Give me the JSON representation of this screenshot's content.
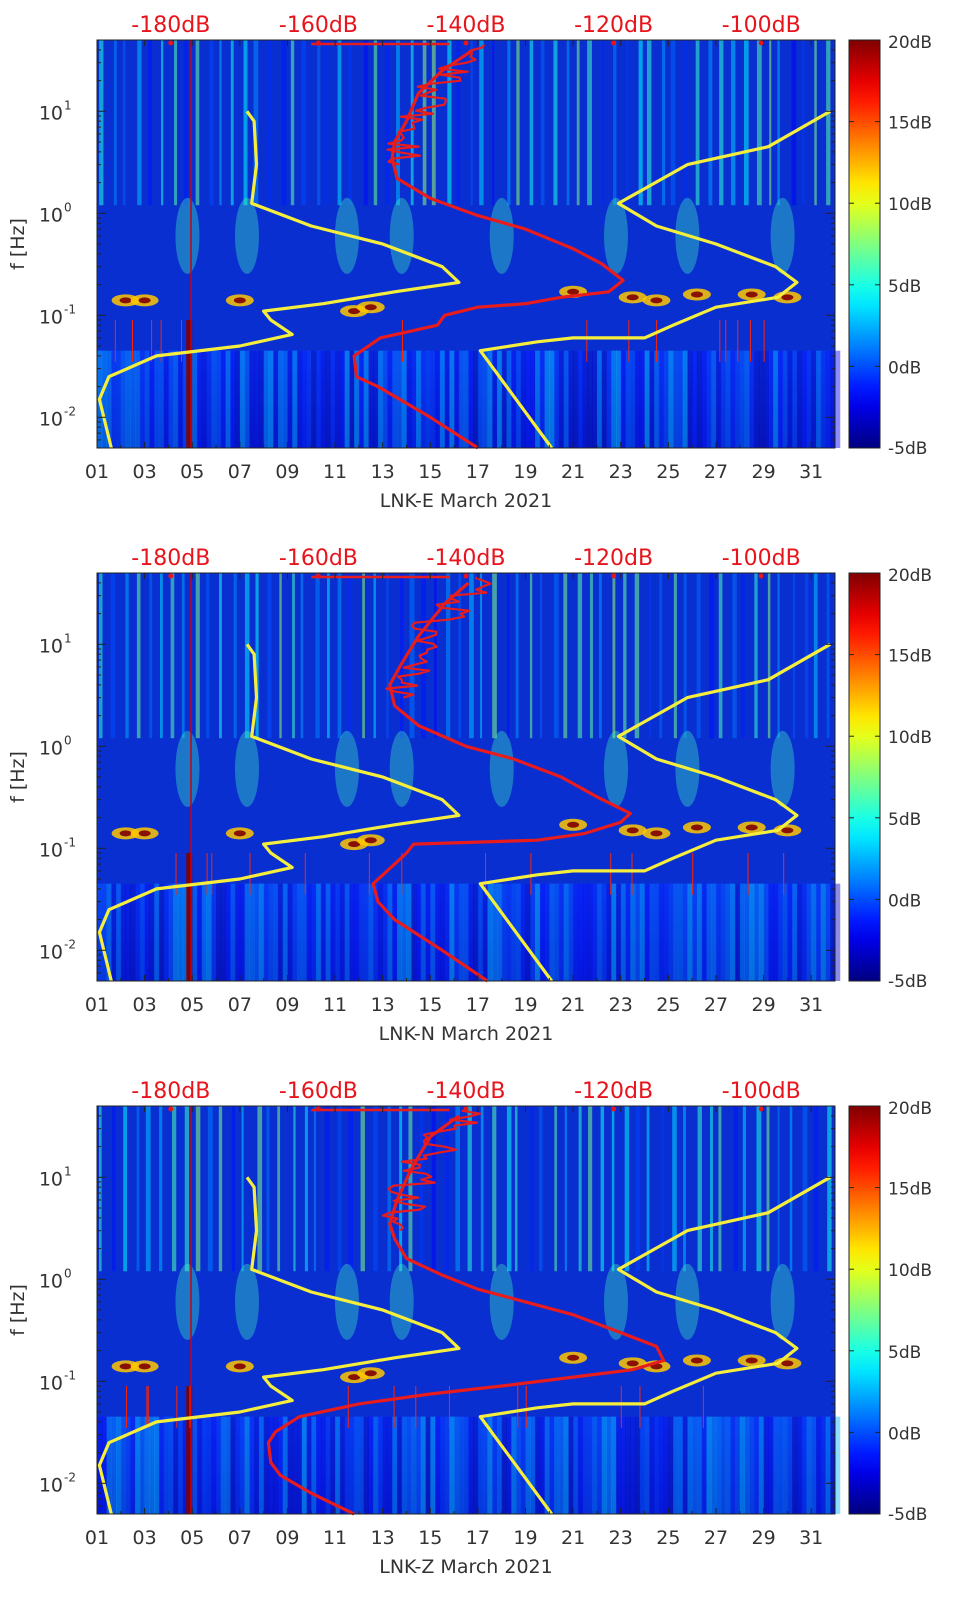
{
  "figure": {
    "top_scale": {
      "labels": [
        "-180dB",
        "-160dB",
        "-140dB",
        "-120dB",
        "-100dB"
      ],
      "values": [
        -180,
        -160,
        -140,
        -120,
        -100
      ],
      "color": "#e8141c"
    },
    "colorbar": {
      "labels": [
        "20dB",
        "15dB",
        "10dB",
        "5dB",
        "0dB",
        "-5dB"
      ],
      "values": [
        20,
        15,
        10,
        5,
        0,
        -5
      ],
      "colormap": "jet"
    },
    "ylabel": "f [Hz]",
    "ytick_labels": [
      "10",
      "10",
      "10"
    ],
    "ytick_exponents": [
      "1",
      "0",
      "-1"
    ],
    "ytick_extra": {
      "base": "10",
      "exponent": "-2"
    },
    "xtick_labels": [
      "01",
      "03",
      "05",
      "07",
      "09",
      "11",
      "13",
      "15",
      "17",
      "19",
      "21",
      "23",
      "25",
      "27",
      "29",
      "31"
    ]
  },
  "panels": [
    {
      "xlabel": "LNK-E March 2021"
    },
    {
      "xlabel": "LNK-N March 2021"
    },
    {
      "xlabel": "LNK-Z March 2021"
    }
  ],
  "colors": {
    "model_curves": "#f5ee3c",
    "noise_curve": "#e81c1c",
    "background": "#0a2fd0"
  },
  "chart_data": [
    {
      "type": "heatmap",
      "title": "",
      "xlabel": "LNK-E March 2021",
      "ylabel": "f [Hz]",
      "xlim": [
        1,
        32
      ],
      "ylim": [
        0.005,
        50
      ],
      "yscale": "log",
      "color_range_db": [
        -5,
        20
      ],
      "top_axis_range_db": [
        -190,
        -90
      ],
      "model_curves_day": {
        "low_model": [
          [
            1.6,
            0.005
          ],
          [
            1.1,
            0.015
          ],
          [
            1.5,
            0.025
          ],
          [
            3.5,
            0.04
          ],
          [
            7.0,
            0.05
          ],
          [
            9.2,
            0.065
          ],
          [
            8.3,
            0.09
          ],
          [
            8.0,
            0.11
          ],
          [
            10.5,
            0.13
          ],
          [
            13.5,
            0.17
          ],
          [
            16.2,
            0.21
          ],
          [
            15.5,
            0.3
          ],
          [
            13.0,
            0.5
          ],
          [
            10.0,
            0.75
          ],
          [
            7.5,
            1.25
          ],
          [
            7.7,
            3.0
          ],
          [
            7.6,
            8.0
          ],
          [
            7.3,
            10.0
          ]
        ],
        "high_model": [
          [
            20.1,
            0.005
          ],
          [
            18.6,
            0.015
          ],
          [
            17.1,
            0.045
          ],
          [
            19.5,
            0.055
          ],
          [
            21.0,
            0.06
          ],
          [
            24.0,
            0.06
          ],
          [
            25.2,
            0.08
          ],
          [
            27.0,
            0.12
          ],
          [
            29.6,
            0.15
          ],
          [
            30.4,
            0.21
          ],
          [
            29.5,
            0.3
          ],
          [
            27.0,
            0.5
          ],
          [
            24.5,
            0.75
          ],
          [
            22.9,
            1.25
          ],
          [
            25.8,
            3.0
          ],
          [
            29.2,
            4.5
          ],
          [
            31.8,
            10.0
          ]
        ]
      },
      "noise_curve_day": [
        [
          17.0,
          0.005
        ],
        [
          15.0,
          0.01
        ],
        [
          12.8,
          0.02
        ],
        [
          11.9,
          0.025
        ],
        [
          11.8,
          0.04
        ],
        [
          12.9,
          0.06
        ],
        [
          14.2,
          0.07
        ],
        [
          15.3,
          0.08
        ],
        [
          15.6,
          0.1
        ],
        [
          17.0,
          0.12
        ],
        [
          19.0,
          0.13
        ],
        [
          20.5,
          0.15
        ],
        [
          22.5,
          0.17
        ],
        [
          23.1,
          0.22
        ],
        [
          22.2,
          0.32
        ],
        [
          21.0,
          0.45
        ],
        [
          19.0,
          0.7
        ],
        [
          17.0,
          0.95
        ],
        [
          15.0,
          1.4
        ],
        [
          13.6,
          2.2
        ],
        [
          13.4,
          3.5
        ],
        [
          13.5,
          5.0
        ],
        [
          14.0,
          8.0
        ],
        [
          14.5,
          15.0
        ],
        [
          15.5,
          25.0
        ],
        [
          16.8,
          40.0
        ]
      ]
    },
    {
      "type": "heatmap",
      "title": "",
      "xlabel": "LNK-N March 2021",
      "ylabel": "f [Hz]",
      "xlim": [
        1,
        32
      ],
      "ylim": [
        0.005,
        50
      ],
      "yscale": "log",
      "color_range_db": [
        -5,
        20
      ],
      "top_axis_range_db": [
        -190,
        -90
      ],
      "model_curves_day": {
        "low_model": [
          [
            1.6,
            0.005
          ],
          [
            1.1,
            0.015
          ],
          [
            1.5,
            0.025
          ],
          [
            3.5,
            0.04
          ],
          [
            7.0,
            0.05
          ],
          [
            9.2,
            0.065
          ],
          [
            8.3,
            0.09
          ],
          [
            8.0,
            0.11
          ],
          [
            10.5,
            0.13
          ],
          [
            13.5,
            0.17
          ],
          [
            16.2,
            0.21
          ],
          [
            15.5,
            0.3
          ],
          [
            13.0,
            0.5
          ],
          [
            10.0,
            0.75
          ],
          [
            7.5,
            1.25
          ],
          [
            7.7,
            3.0
          ],
          [
            7.6,
            8.0
          ],
          [
            7.3,
            10.0
          ]
        ],
        "high_model": [
          [
            20.1,
            0.005
          ],
          [
            18.6,
            0.015
          ],
          [
            17.1,
            0.045
          ],
          [
            19.5,
            0.055
          ],
          [
            21.0,
            0.06
          ],
          [
            24.0,
            0.06
          ],
          [
            25.2,
            0.08
          ],
          [
            27.0,
            0.12
          ],
          [
            29.6,
            0.15
          ],
          [
            30.4,
            0.21
          ],
          [
            29.5,
            0.3
          ],
          [
            27.0,
            0.5
          ],
          [
            24.5,
            0.75
          ],
          [
            22.9,
            1.25
          ],
          [
            25.8,
            3.0
          ],
          [
            29.2,
            4.5
          ],
          [
            31.8,
            10.0
          ]
        ]
      },
      "noise_curve_day": [
        [
          17.4,
          0.005
        ],
        [
          15.5,
          0.01
        ],
        [
          13.5,
          0.02
        ],
        [
          12.8,
          0.03
        ],
        [
          12.6,
          0.045
        ],
        [
          13.5,
          0.07
        ],
        [
          14.0,
          0.09
        ],
        [
          14.3,
          0.11
        ],
        [
          17.0,
          0.115
        ],
        [
          19.5,
          0.12
        ],
        [
          21.5,
          0.14
        ],
        [
          23.0,
          0.18
        ],
        [
          23.4,
          0.22
        ],
        [
          22.0,
          0.32
        ],
        [
          20.5,
          0.5
        ],
        [
          18.5,
          0.75
        ],
        [
          16.5,
          1.0
        ],
        [
          14.5,
          1.6
        ],
        [
          13.5,
          2.5
        ],
        [
          13.3,
          4.0
        ],
        [
          13.8,
          6.5
        ],
        [
          14.5,
          12.0
        ],
        [
          15.6,
          25.0
        ],
        [
          16.6,
          40.0
        ]
      ]
    },
    {
      "type": "heatmap",
      "title": "",
      "xlabel": "LNK-Z March 2021",
      "ylabel": "f [Hz]",
      "xlim": [
        1,
        32
      ],
      "ylim": [
        0.005,
        50
      ],
      "yscale": "log",
      "color_range_db": [
        -5,
        20
      ],
      "top_axis_range_db": [
        -190,
        -90
      ],
      "model_curves_day": {
        "low_model": [
          [
            1.6,
            0.005
          ],
          [
            1.1,
            0.015
          ],
          [
            1.5,
            0.025
          ],
          [
            3.5,
            0.04
          ],
          [
            7.0,
            0.05
          ],
          [
            9.2,
            0.065
          ],
          [
            8.3,
            0.09
          ],
          [
            8.0,
            0.11
          ],
          [
            10.5,
            0.13
          ],
          [
            13.5,
            0.17
          ],
          [
            16.2,
            0.21
          ],
          [
            15.5,
            0.3
          ],
          [
            13.0,
            0.5
          ],
          [
            10.0,
            0.75
          ],
          [
            7.5,
            1.25
          ],
          [
            7.7,
            3.0
          ],
          [
            7.6,
            8.0
          ],
          [
            7.3,
            10.0
          ]
        ],
        "high_model": [
          [
            20.1,
            0.005
          ],
          [
            18.6,
            0.015
          ],
          [
            17.1,
            0.045
          ],
          [
            19.5,
            0.055
          ],
          [
            21.0,
            0.06
          ],
          [
            24.0,
            0.06
          ],
          [
            25.2,
            0.08
          ],
          [
            27.0,
            0.12
          ],
          [
            29.6,
            0.15
          ],
          [
            30.4,
            0.21
          ],
          [
            29.5,
            0.3
          ],
          [
            27.0,
            0.5
          ],
          [
            24.5,
            0.75
          ],
          [
            22.9,
            1.25
          ],
          [
            25.8,
            3.0
          ],
          [
            29.2,
            4.5
          ],
          [
            31.8,
            10.0
          ]
        ]
      },
      "noise_curve_day": [
        [
          11.8,
          0.005
        ],
        [
          10.0,
          0.008
        ],
        [
          8.7,
          0.012
        ],
        [
          8.3,
          0.016
        ],
        [
          8.2,
          0.025
        ],
        [
          8.5,
          0.032
        ],
        [
          9.5,
          0.045
        ],
        [
          12.0,
          0.06
        ],
        [
          15.0,
          0.075
        ],
        [
          18.0,
          0.09
        ],
        [
          21.0,
          0.11
        ],
        [
          23.5,
          0.13
        ],
        [
          24.8,
          0.16
        ],
        [
          24.5,
          0.22
        ],
        [
          23.0,
          0.3
        ],
        [
          21.0,
          0.45
        ],
        [
          19.0,
          0.6
        ],
        [
          17.0,
          0.8
        ],
        [
          15.5,
          1.1
        ],
        [
          14.0,
          1.6
        ],
        [
          13.5,
          2.5
        ],
        [
          13.3,
          3.5
        ],
        [
          13.6,
          6.0
        ],
        [
          14.2,
          12.0
        ],
        [
          15.0,
          25.0
        ],
        [
          16.2,
          40.0
        ]
      ]
    }
  ]
}
